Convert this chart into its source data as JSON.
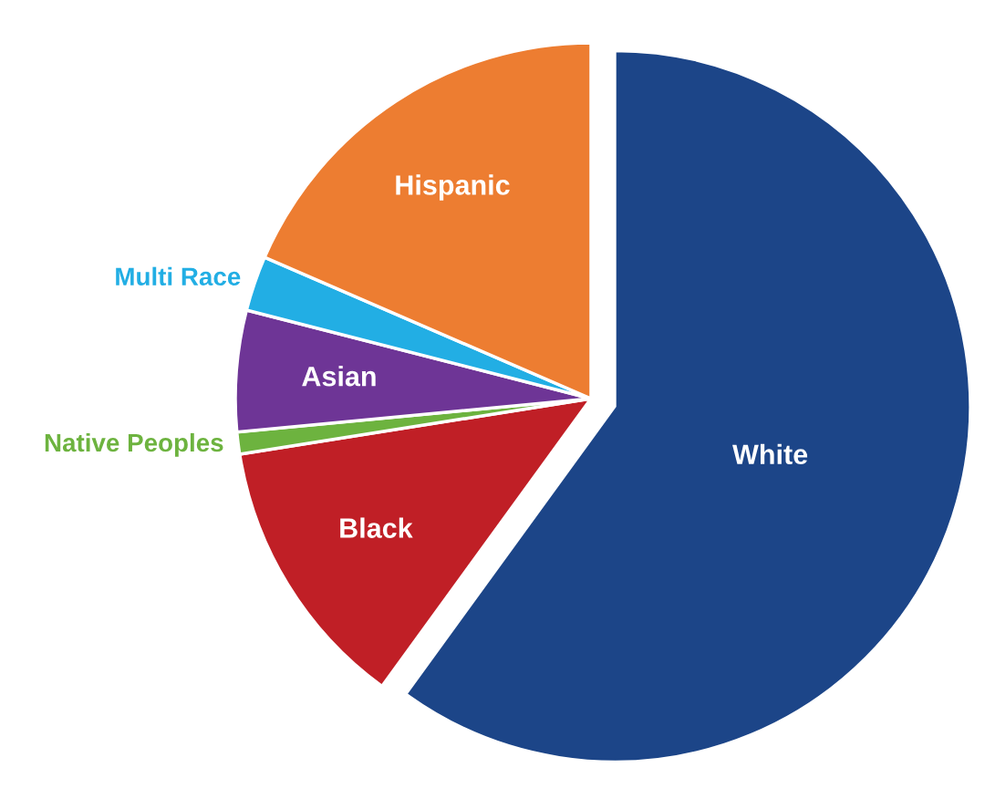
{
  "chart_data": {
    "type": "pie",
    "categories": [
      "White",
      "Black",
      "Native Peoples",
      "Asian",
      "Multi Race",
      "Hispanic"
    ],
    "values": [
      60,
      12.5,
      1,
      5.5,
      2.5,
      18.5
    ],
    "colors": [
      "#1c4588",
      "#c01f26",
      "#6db33f",
      "#6e3596",
      "#22aee4",
      "#ed7d31"
    ]
  }
}
